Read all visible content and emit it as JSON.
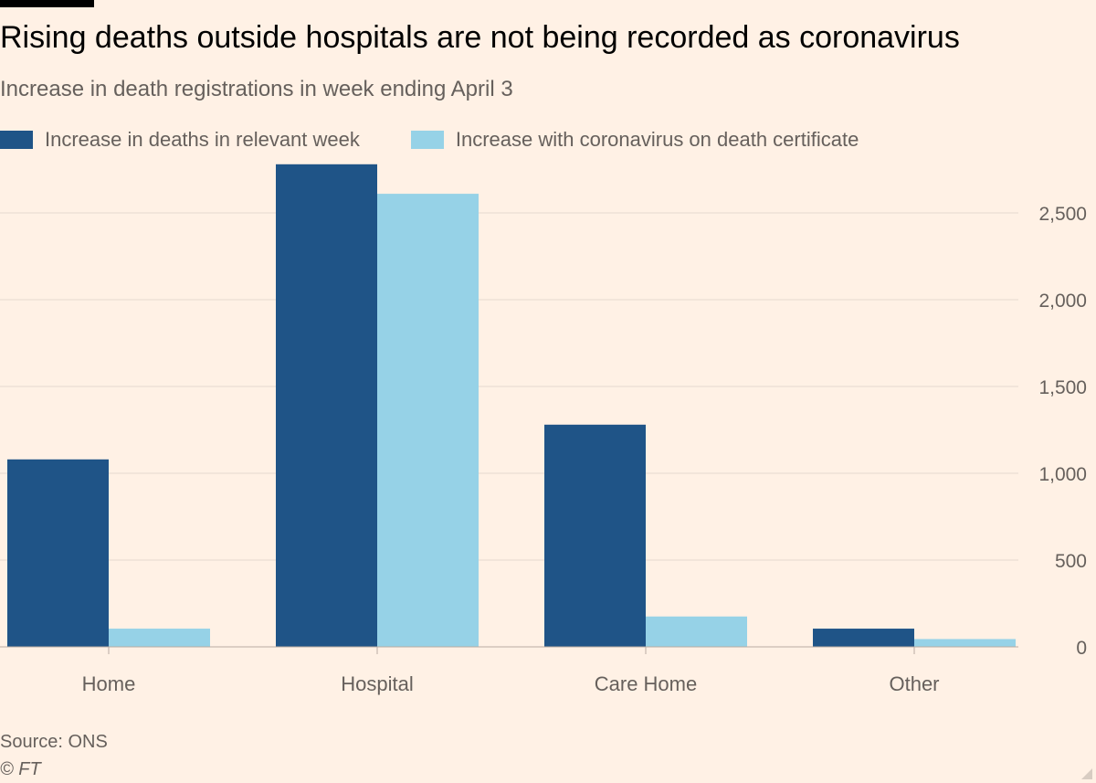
{
  "title": "Rising deaths outside hospitals are not being recorded as coronavirus",
  "subtitle": "Increase in death registrations in week ending April 3",
  "source": "Source: ONS",
  "copyright": "© FT",
  "colors": {
    "background": "#fff1e5",
    "series_dark": "#1f5487",
    "series_light": "#96d2e7",
    "gridline": "#e6d9ce",
    "axis_text": "#66605c"
  },
  "chart_data": {
    "type": "bar",
    "title": "Rising deaths outside hospitals are not being recorded as coronavirus",
    "subtitle": "Increase in death registrations in week ending April 3",
    "categories": [
      "Home",
      "Hospital",
      "Care Home",
      "Other"
    ],
    "series": [
      {
        "name": "Increase in deaths in relevant week",
        "values": [
          1080,
          2780,
          1280,
          105
        ]
      },
      {
        "name": "Increase with coronavirus on death certificate",
        "values": [
          105,
          2610,
          175,
          45
        ]
      }
    ],
    "ylim": [
      0,
      2800
    ],
    "yticks": [
      0,
      500,
      1000,
      1500,
      2000,
      2500
    ],
    "ytick_labels": [
      "0",
      "500",
      "1,000",
      "1,500",
      "2,000",
      "2,500"
    ],
    "y_axis_side": "right",
    "grid": true,
    "legend_position": "top-left",
    "xlabel": "",
    "ylabel": ""
  }
}
